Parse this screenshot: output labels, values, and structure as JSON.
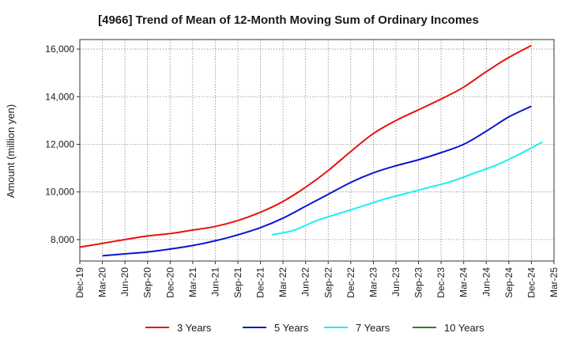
{
  "chart_data": {
    "type": "line",
    "title": "[4966]  Trend of Mean of 12-Month Moving Sum of Ordinary Incomes",
    "xlabel": "",
    "ylabel": "Amount (million yen)",
    "ylim": [
      7100,
      16400
    ],
    "yticks": [
      8000,
      10000,
      12000,
      14000,
      16000
    ],
    "ytick_labels": [
      "8,000",
      "10,000",
      "12,000",
      "14,000",
      "16,000"
    ],
    "xtick_labels": [
      "Dec-19",
      "Mar-20",
      "Jun-20",
      "Sep-20",
      "Dec-20",
      "Mar-21",
      "Jun-21",
      "Sep-21",
      "Dec-21",
      "Mar-22",
      "Jun-22",
      "Sep-22",
      "Dec-22",
      "Mar-23",
      "Jun-23",
      "Sep-23",
      "Dec-23",
      "Mar-24",
      "Jun-24",
      "Sep-24",
      "Dec-24",
      "Mar-25"
    ],
    "grid": true,
    "legend_position": "bottom",
    "series": [
      {
        "name": "3 Years",
        "color": "#e8120c",
        "start_index": 0,
        "values": [
          7680,
          7840,
          8000,
          8150,
          8250,
          8400,
          8550,
          8800,
          9150,
          9600,
          10200,
          10900,
          11700,
          12450,
          13000,
          13450,
          13900,
          14400,
          15050,
          15650,
          16150
        ]
      },
      {
        "name": "5 Years",
        "color": "#0a14cf",
        "start_index": 1,
        "values": [
          7320,
          7400,
          7480,
          7600,
          7750,
          7950,
          8200,
          8500,
          8900,
          9400,
          9900,
          10400,
          10800,
          11100,
          11350,
          11650,
          12000,
          12550,
          13150,
          13600
        ]
      },
      {
        "name": "7 Years",
        "color": "#19f0f0",
        "start_index": 8.5,
        "values": [
          8200,
          8400,
          8800,
          9100,
          9400,
          9700,
          9950,
          10200,
          10450,
          10800,
          11150,
          11600,
          12100
        ]
      },
      {
        "name": "10 Years",
        "color": "#1f8a1f",
        "start_index": null,
        "values": []
      }
    ]
  }
}
